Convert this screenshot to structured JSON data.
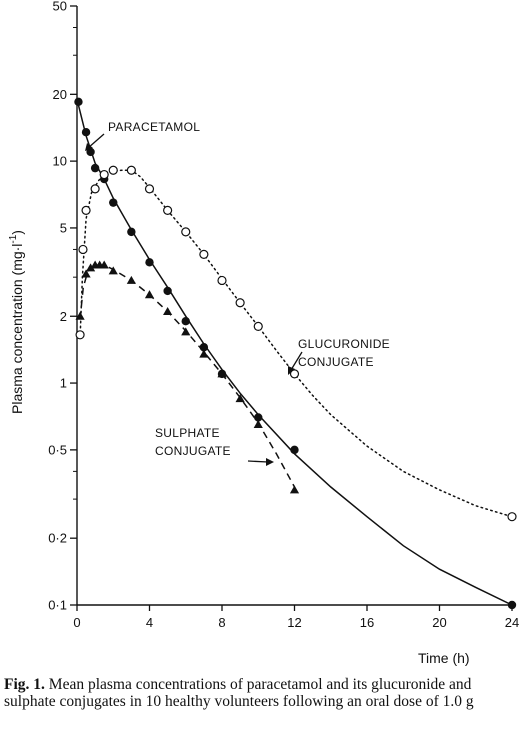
{
  "chart_data": {
    "type": "line",
    "xlabel": "Time (h)",
    "ylabel": "Plasma concentration (mg·l",
    "ylabel_sup": "-1",
    "ylabel_close": ")",
    "x_ticks": [
      "0",
      "4",
      "8",
      "12",
      "16",
      "20",
      "24"
    ],
    "x_tick_values": [
      0,
      4,
      8,
      12,
      16,
      20,
      24
    ],
    "y_ticks": [
      "0·1",
      "0·2",
      "0·5",
      "1",
      "2",
      "5",
      "10",
      "20",
      "50"
    ],
    "y_tick_values": [
      0.1,
      0.2,
      0.5,
      1,
      2,
      5,
      10,
      20,
      50
    ],
    "xlim": [
      0,
      24
    ],
    "ylim": [
      0.1,
      50
    ],
    "y_scale": "log",
    "grid": false,
    "series": [
      {
        "name": "PARACETAMOL",
        "marker": "filled-circle",
        "line_style": "solid",
        "points": [
          [
            0.08,
            18.5
          ],
          [
            0.5,
            13.5
          ],
          [
            0.75,
            11
          ],
          [
            1,
            9.3
          ],
          [
            1.5,
            8.3
          ],
          [
            2,
            6.5
          ],
          [
            3,
            4.8
          ],
          [
            4,
            3.5
          ],
          [
            5,
            2.6
          ],
          [
            6,
            1.9
          ],
          [
            7,
            1.45
          ],
          [
            8,
            1.1
          ],
          [
            10,
            0.7
          ],
          [
            12,
            0.5
          ],
          [
            24,
            0.1
          ]
        ],
        "curve": [
          [
            0,
            19
          ],
          [
            0.5,
            13
          ],
          [
            1,
            9.8
          ],
          [
            1.5,
            8.3
          ],
          [
            2,
            6.8
          ],
          [
            3,
            4.9
          ],
          [
            4,
            3.6
          ],
          [
            5,
            2.7
          ],
          [
            6,
            2.0
          ],
          [
            7,
            1.5
          ],
          [
            8,
            1.15
          ],
          [
            9,
            0.9
          ],
          [
            10,
            0.72
          ],
          [
            12,
            0.48
          ],
          [
            14,
            0.34
          ],
          [
            16,
            0.25
          ],
          [
            18,
            0.185
          ],
          [
            20,
            0.145
          ],
          [
            22,
            0.12
          ],
          [
            24,
            0.1
          ]
        ]
      },
      {
        "name": "GLUCURONIDE CONJUGATE",
        "marker": "open-circle",
        "line_style": "dotted",
        "points": [
          [
            0.17,
            1.65
          ],
          [
            0.33,
            4.0
          ],
          [
            0.5,
            6.0
          ],
          [
            1,
            7.5
          ],
          [
            1.5,
            8.7
          ],
          [
            2,
            9.1
          ],
          [
            3,
            9.1
          ],
          [
            4,
            7.5
          ],
          [
            5,
            6.0
          ],
          [
            6,
            4.8
          ],
          [
            7,
            3.8
          ],
          [
            8,
            2.9
          ],
          [
            9,
            2.3
          ],
          [
            10,
            1.8
          ],
          [
            12,
            1.1
          ],
          [
            24,
            0.25
          ]
        ],
        "curve": [
          [
            0.17,
            1.6
          ],
          [
            0.3,
            3.0
          ],
          [
            0.5,
            5.5
          ],
          [
            0.8,
            7.2
          ],
          [
            1.2,
            8.2
          ],
          [
            1.6,
            8.8
          ],
          [
            2,
            9.0
          ],
          [
            2.5,
            9.1
          ],
          [
            3,
            9.1
          ],
          [
            3.5,
            8.5
          ],
          [
            4,
            7.6
          ],
          [
            5,
            6.0
          ],
          [
            6,
            4.8
          ],
          [
            7,
            3.8
          ],
          [
            8,
            2.95
          ],
          [
            9,
            2.3
          ],
          [
            10,
            1.8
          ],
          [
            11,
            1.4
          ],
          [
            12,
            1.1
          ],
          [
            13,
            0.88
          ],
          [
            14,
            0.72
          ],
          [
            16,
            0.52
          ],
          [
            18,
            0.4
          ],
          [
            20,
            0.33
          ],
          [
            22,
            0.28
          ],
          [
            24,
            0.25
          ]
        ]
      },
      {
        "name": "SULPHATE CONJUGATE",
        "marker": "filled-triangle",
        "line_style": "dashed",
        "points": [
          [
            0.17,
            2.0
          ],
          [
            0.5,
            3.1
          ],
          [
            0.75,
            3.3
          ],
          [
            1,
            3.4
          ],
          [
            1.25,
            3.4
          ],
          [
            1.5,
            3.4
          ],
          [
            2,
            3.2
          ],
          [
            3,
            2.9
          ],
          [
            4,
            2.5
          ],
          [
            5,
            2.1
          ],
          [
            6,
            1.7
          ],
          [
            7,
            1.35
          ],
          [
            8,
            1.1
          ],
          [
            9,
            0.85
          ],
          [
            10,
            0.65
          ],
          [
            12,
            0.33
          ]
        ],
        "curve": [
          [
            0.17,
            1.95
          ],
          [
            0.35,
            2.7
          ],
          [
            0.6,
            3.2
          ],
          [
            1,
            3.4
          ],
          [
            1.5,
            3.4
          ],
          [
            2,
            3.25
          ],
          [
            3,
            2.9
          ],
          [
            4,
            2.5
          ],
          [
            5,
            2.1
          ],
          [
            6,
            1.72
          ],
          [
            7,
            1.38
          ],
          [
            8,
            1.1
          ],
          [
            9,
            0.86
          ],
          [
            10,
            0.66
          ],
          [
            11,
            0.48
          ],
          [
            12,
            0.34
          ]
        ]
      }
    ],
    "annotations": [
      {
        "lines": [
          "PARACETAMOL"
        ],
        "target": [
          0.9,
          10.8
        ]
      },
      {
        "lines": [
          "GLUCURONIDE",
          "CONJUGATE"
        ],
        "target": [
          11.6,
          1.2
        ]
      },
      {
        "lines": [
          "SULPHATE",
          "CONJUGATE"
        ],
        "target": [
          9.7,
          0.58
        ]
      }
    ]
  },
  "caption": {
    "fig_label": "Fig. 1.",
    "text": "Mean plasma concentrations of paracetamol and its glucuronide and sulphate conjugates in 10 healthy volunteers following an oral dose of 1.0 g"
  }
}
